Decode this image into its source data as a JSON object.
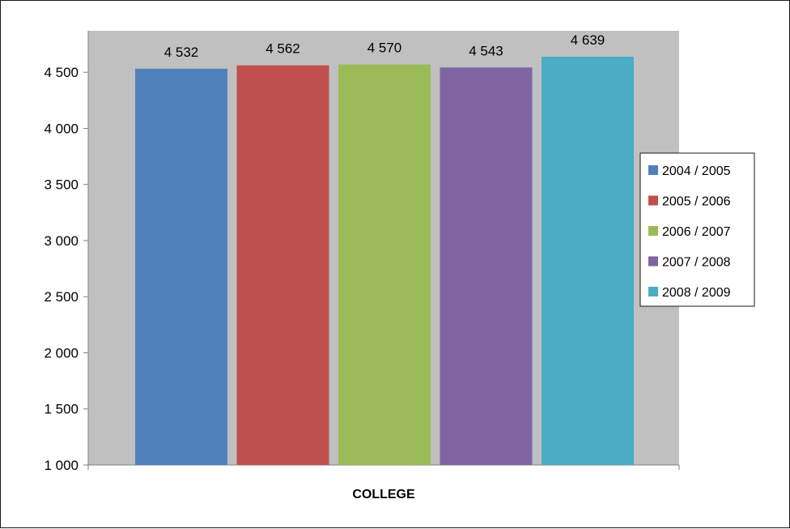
{
  "chart_data": {
    "type": "bar",
    "categories": [
      "COLLEGE"
    ],
    "series": [
      {
        "name": "2004 / 2005",
        "values": [
          4532
        ],
        "label": "4 532",
        "color": "#4F81BD"
      },
      {
        "name": "2005 / 2006",
        "values": [
          4562
        ],
        "label": "4 562",
        "color": "#C0504D"
      },
      {
        "name": "2006 / 2007",
        "values": [
          4570
        ],
        "label": "4 570",
        "color": "#9BBB59"
      },
      {
        "name": "2007 / 2008",
        "values": [
          4543
        ],
        "label": "4 543",
        "color": "#8064A2"
      },
      {
        "name": "2008 / 2009",
        "values": [
          4639
        ],
        "label": "4 639",
        "color": "#4BACC6"
      }
    ],
    "yticks": [
      {
        "value": 1000,
        "label": "1 000"
      },
      {
        "value": 1500,
        "label": "1 500"
      },
      {
        "value": 2000,
        "label": "2 000"
      },
      {
        "value": 2500,
        "label": "2 500"
      },
      {
        "value": 3000,
        "label": "3 000"
      },
      {
        "value": 3500,
        "label": "3 500"
      },
      {
        "value": 4000,
        "label": "4 000"
      },
      {
        "value": 4500,
        "label": "4 500"
      }
    ],
    "ylim": [
      1000,
      4870
    ],
    "title": "",
    "xlabel": "",
    "ylabel": "",
    "grid": false,
    "legend_position": "right",
    "plot_background": "#C0C0C0"
  }
}
